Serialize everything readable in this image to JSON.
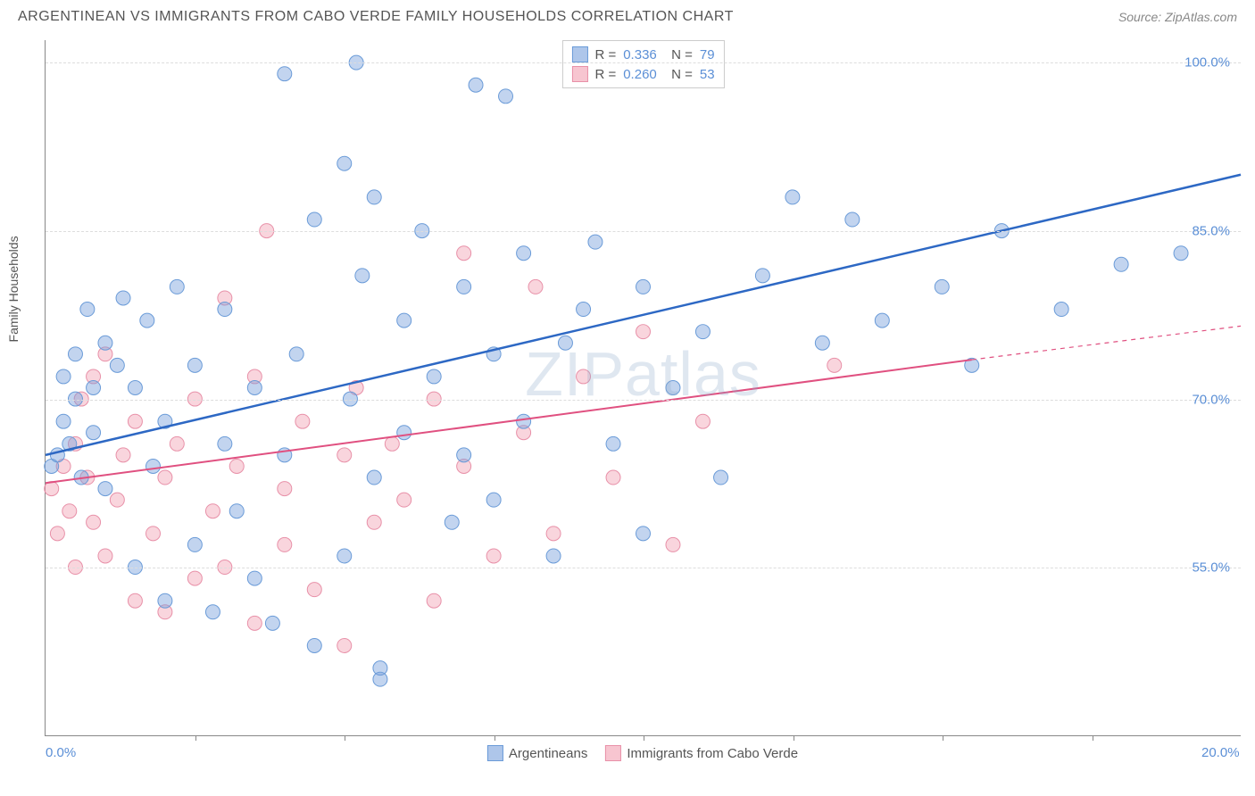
{
  "header": {
    "title": "ARGENTINEAN VS IMMIGRANTS FROM CABO VERDE FAMILY HOUSEHOLDS CORRELATION CHART",
    "source": "Source: ZipAtlas.com"
  },
  "watermark": "ZIPatlas",
  "chart": {
    "type": "scatter",
    "ylabel": "Family Households",
    "background_color": "#ffffff",
    "grid_color": "#dddddd",
    "axis_color": "#888888",
    "xlim": [
      0,
      20
    ],
    "ylim": [
      40,
      102
    ],
    "ytick_values": [
      55.0,
      70.0,
      85.0,
      100.0
    ],
    "ytick_labels": [
      "55.0%",
      "70.0%",
      "85.0%",
      "100.0%"
    ],
    "xtick_values": [
      0,
      20
    ],
    "xtick_labels": [
      "0.0%",
      "20.0%"
    ],
    "xtick_minor": [
      2.5,
      5,
      7.5,
      10,
      12.5,
      15,
      17.5
    ],
    "series": [
      {
        "name": "Argentineans",
        "color_fill": "rgba(120,160,220,0.45)",
        "color_stroke": "#6a9bd8",
        "line_color": "#2d68c4",
        "line_width": 2.5,
        "marker_radius": 8,
        "stats": {
          "R": "0.336",
          "N": "79"
        },
        "trend": {
          "x1": 0,
          "y1": 65,
          "x2": 20,
          "y2": 90
        },
        "points": [
          [
            0.1,
            64
          ],
          [
            0.2,
            65
          ],
          [
            0.3,
            68
          ],
          [
            0.3,
            72
          ],
          [
            0.4,
            66
          ],
          [
            0.5,
            70
          ],
          [
            0.5,
            74
          ],
          [
            0.6,
            63
          ],
          [
            0.7,
            78
          ],
          [
            0.8,
            71
          ],
          [
            0.8,
            67
          ],
          [
            1.0,
            62
          ],
          [
            1.0,
            75
          ],
          [
            1.2,
            73
          ],
          [
            1.3,
            79
          ],
          [
            1.5,
            55
          ],
          [
            1.5,
            71
          ],
          [
            1.7,
            77
          ],
          [
            1.8,
            64
          ],
          [
            2.0,
            52
          ],
          [
            2.0,
            68
          ],
          [
            2.2,
            80
          ],
          [
            2.5,
            57
          ],
          [
            2.5,
            73
          ],
          [
            2.8,
            51
          ],
          [
            3.0,
            78
          ],
          [
            3.0,
            66
          ],
          [
            3.2,
            60
          ],
          [
            3.5,
            54
          ],
          [
            3.5,
            71
          ],
          [
            3.8,
            50
          ],
          [
            4.0,
            99
          ],
          [
            4.0,
            65
          ],
          [
            4.2,
            74
          ],
          [
            4.5,
            48
          ],
          [
            4.5,
            86
          ],
          [
            5.0,
            91
          ],
          [
            5.0,
            56
          ],
          [
            5.1,
            70
          ],
          [
            5.2,
            100
          ],
          [
            5.3,
            81
          ],
          [
            5.5,
            63
          ],
          [
            5.5,
            88
          ],
          [
            5.6,
            46
          ],
          [
            5.6,
            45
          ],
          [
            6.0,
            77
          ],
          [
            6.0,
            67
          ],
          [
            6.3,
            85
          ],
          [
            6.5,
            72
          ],
          [
            6.8,
            59
          ],
          [
            7.0,
            80
          ],
          [
            7.0,
            65
          ],
          [
            7.2,
            98
          ],
          [
            7.5,
            61
          ],
          [
            7.5,
            74
          ],
          [
            7.7,
            97
          ],
          [
            8.0,
            68
          ],
          [
            8.0,
            83
          ],
          [
            8.5,
            56
          ],
          [
            8.7,
            75
          ],
          [
            9.0,
            78
          ],
          [
            9.2,
            84
          ],
          [
            9.5,
            66
          ],
          [
            10.0,
            58
          ],
          [
            10.0,
            80
          ],
          [
            10.5,
            71
          ],
          [
            11.0,
            76
          ],
          [
            11.3,
            63
          ],
          [
            12.0,
            81
          ],
          [
            12.5,
            88
          ],
          [
            13.0,
            75
          ],
          [
            13.5,
            86
          ],
          [
            14.0,
            77
          ],
          [
            15.0,
            80
          ],
          [
            15.5,
            73
          ],
          [
            16.0,
            85
          ],
          [
            17.0,
            78
          ],
          [
            18.0,
            82
          ],
          [
            19.0,
            83
          ]
        ]
      },
      {
        "name": "Immigants from Cabo Verde",
        "display_name": "Immigrants from Cabo Verde",
        "color_fill": "rgba(240,150,170,0.40)",
        "color_stroke": "#e890a8",
        "line_color": "#e05080",
        "line_width": 2.0,
        "marker_radius": 8,
        "stats": {
          "R": "0.260",
          "N": "53"
        },
        "trend": {
          "x1": 0,
          "y1": 62.5,
          "x2": 15.5,
          "y2": 73.5
        },
        "trend_dashed": {
          "x1": 15.5,
          "y1": 73.5,
          "x2": 20,
          "y2": 76.5
        },
        "points": [
          [
            0.1,
            62
          ],
          [
            0.2,
            58
          ],
          [
            0.3,
            64
          ],
          [
            0.4,
            60
          ],
          [
            0.5,
            66
          ],
          [
            0.5,
            55
          ],
          [
            0.6,
            70
          ],
          [
            0.7,
            63
          ],
          [
            0.8,
            59
          ],
          [
            0.8,
            72
          ],
          [
            1.0,
            56
          ],
          [
            1.0,
            74
          ],
          [
            1.2,
            61
          ],
          [
            1.3,
            65
          ],
          [
            1.5,
            52
          ],
          [
            1.5,
            68
          ],
          [
            1.8,
            58
          ],
          [
            2.0,
            63
          ],
          [
            2.0,
            51
          ],
          [
            2.2,
            66
          ],
          [
            2.5,
            54
          ],
          [
            2.5,
            70
          ],
          [
            2.8,
            60
          ],
          [
            3.0,
            55
          ],
          [
            3.0,
            79
          ],
          [
            3.2,
            64
          ],
          [
            3.5,
            72
          ],
          [
            3.5,
            50
          ],
          [
            3.7,
            85
          ],
          [
            4.0,
            62
          ],
          [
            4.0,
            57
          ],
          [
            4.3,
            68
          ],
          [
            4.5,
            53
          ],
          [
            5.0,
            65
          ],
          [
            5.0,
            48
          ],
          [
            5.2,
            71
          ],
          [
            5.5,
            59
          ],
          [
            5.8,
            66
          ],
          [
            6.0,
            61
          ],
          [
            6.5,
            52
          ],
          [
            6.5,
            70
          ],
          [
            7.0,
            64
          ],
          [
            7.0,
            83
          ],
          [
            7.5,
            56
          ],
          [
            8.0,
            67
          ],
          [
            8.2,
            80
          ],
          [
            8.5,
            58
          ],
          [
            9.0,
            72
          ],
          [
            9.5,
            63
          ],
          [
            10.0,
            76
          ],
          [
            10.5,
            57
          ],
          [
            11.0,
            68
          ],
          [
            13.2,
            73
          ]
        ]
      }
    ],
    "legend_bottom": [
      {
        "label": "Argentineans",
        "fill": "rgba(120,160,220,0.6)",
        "stroke": "#6a9bd8"
      },
      {
        "label": "Immigrants from Cabo Verde",
        "fill": "rgba(240,150,170,0.55)",
        "stroke": "#e890a8"
      }
    ]
  }
}
